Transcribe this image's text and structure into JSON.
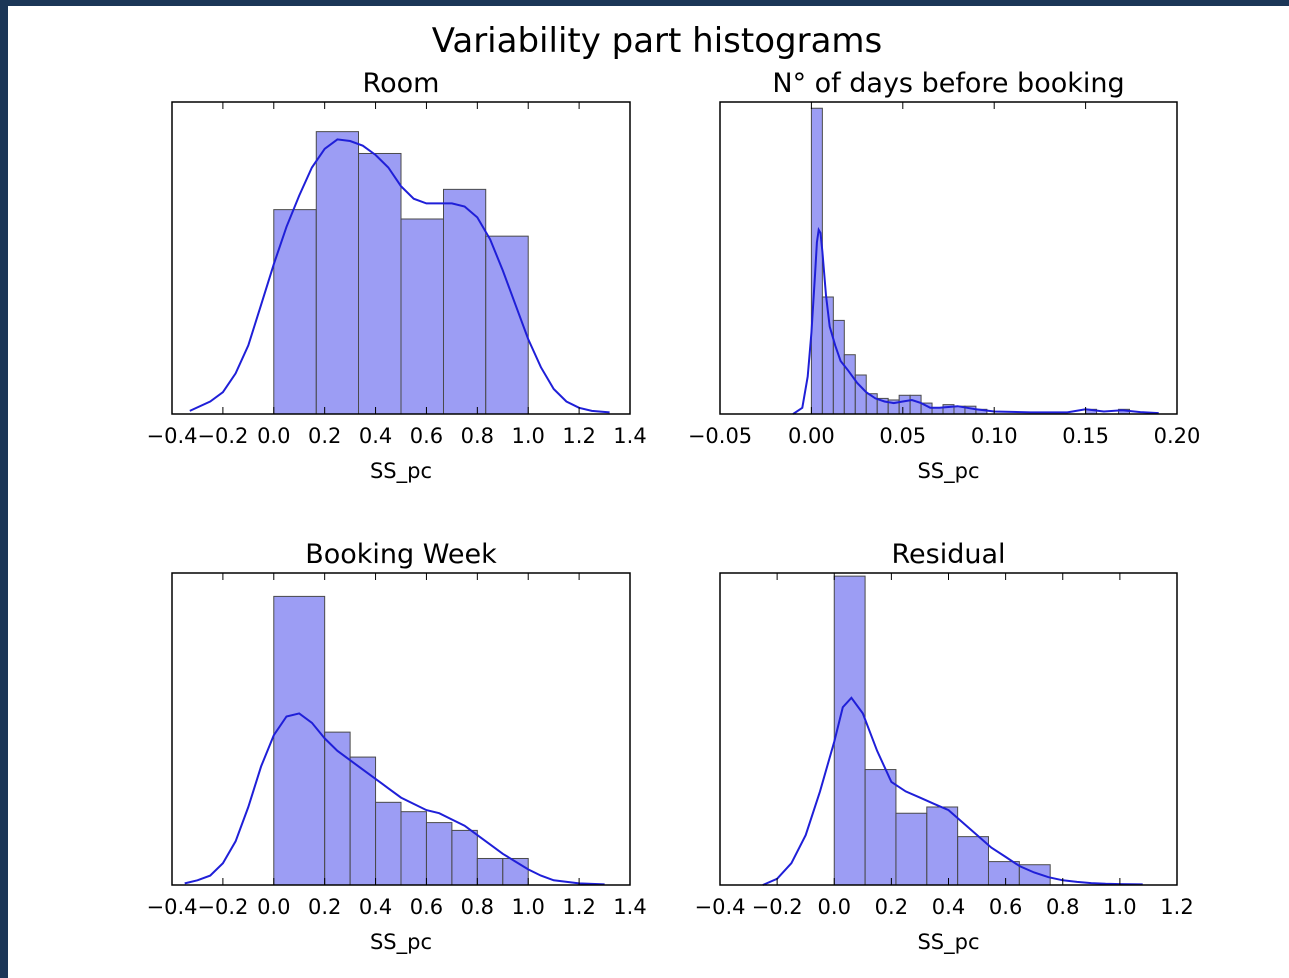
{
  "figure": {
    "suptitle": "Variability part histograms",
    "colors": {
      "bar_fill": "#7b7cf0",
      "bar_opacity": 0.75,
      "bar_edge": "#4a4a4a",
      "kde_line": "#1f1fd8",
      "axes_frame": "#000000",
      "background": "#ffffff"
    }
  },
  "chart_data": [
    {
      "type": "bar",
      "title": "Room",
      "xlabel": "SS_pc",
      "ylabel": "",
      "xlim": [
        -0.4,
        1.4
      ],
      "ylim": [
        0,
        1.0
      ],
      "yticks_visible": false,
      "xticks": [
        -0.4,
        -0.2,
        0.0,
        0.2,
        0.4,
        0.6,
        0.8,
        1.0,
        1.2,
        1.4
      ],
      "xtick_labels": [
        "−0.4",
        "−0.2",
        "0.0",
        "0.2",
        "0.4",
        "0.6",
        "0.8",
        "1.0",
        "1.2",
        "1.4"
      ],
      "bins": [
        {
          "x0": 0.0,
          "x1": 0.167,
          "y": 0.655
        },
        {
          "x0": 0.167,
          "x1": 0.333,
          "y": 0.905
        },
        {
          "x0": 0.333,
          "x1": 0.5,
          "y": 0.835
        },
        {
          "x0": 0.5,
          "x1": 0.667,
          "y": 0.625
        },
        {
          "x0": 0.667,
          "x1": 0.833,
          "y": 0.72
        },
        {
          "x0": 0.833,
          "x1": 1.0,
          "y": 0.57
        }
      ],
      "kde": {
        "x": [
          -0.33,
          -0.25,
          -0.2,
          -0.15,
          -0.1,
          -0.05,
          0.0,
          0.05,
          0.1,
          0.15,
          0.2,
          0.25,
          0.3,
          0.35,
          0.4,
          0.45,
          0.5,
          0.55,
          0.6,
          0.65,
          0.7,
          0.75,
          0.8,
          0.85,
          0.9,
          0.95,
          1.0,
          1.05,
          1.1,
          1.15,
          1.2,
          1.25,
          1.32
        ],
        "y": [
          0.01,
          0.04,
          0.07,
          0.13,
          0.22,
          0.35,
          0.48,
          0.6,
          0.7,
          0.79,
          0.85,
          0.88,
          0.875,
          0.86,
          0.83,
          0.79,
          0.73,
          0.69,
          0.675,
          0.675,
          0.675,
          0.665,
          0.63,
          0.56,
          0.46,
          0.35,
          0.24,
          0.15,
          0.08,
          0.04,
          0.02,
          0.01,
          0.005
        ]
      }
    },
    {
      "type": "bar",
      "title": "N° of days before booking",
      "xlabel": "SS_pc",
      "ylabel": "",
      "xlim": [
        -0.05,
        0.2
      ],
      "ylim": [
        0,
        1.0
      ],
      "yticks_visible": false,
      "xticks": [
        -0.05,
        0.0,
        0.05,
        0.1,
        0.15,
        0.2
      ],
      "xtick_labels": [
        "−0.05",
        "0.00",
        "0.05",
        "0.10",
        "0.15",
        "0.20"
      ],
      "bins": [
        {
          "x0": 0.0,
          "x1": 0.006,
          "y": 0.98
        },
        {
          "x0": 0.006,
          "x1": 0.012,
          "y": 0.375
        },
        {
          "x0": 0.012,
          "x1": 0.018,
          "y": 0.3
        },
        {
          "x0": 0.018,
          "x1": 0.024,
          "y": 0.19
        },
        {
          "x0": 0.024,
          "x1": 0.03,
          "y": 0.125
        },
        {
          "x0": 0.03,
          "x1": 0.036,
          "y": 0.065
        },
        {
          "x0": 0.036,
          "x1": 0.042,
          "y": 0.05
        },
        {
          "x0": 0.042,
          "x1": 0.048,
          "y": 0.045
        },
        {
          "x0": 0.048,
          "x1": 0.054,
          "y": 0.06
        },
        {
          "x0": 0.054,
          "x1": 0.06,
          "y": 0.06
        },
        {
          "x0": 0.06,
          "x1": 0.066,
          "y": 0.035
        },
        {
          "x0": 0.066,
          "x1": 0.072,
          "y": 0.02
        },
        {
          "x0": 0.072,
          "x1": 0.078,
          "y": 0.03
        },
        {
          "x0": 0.078,
          "x1": 0.084,
          "y": 0.025
        },
        {
          "x0": 0.084,
          "x1": 0.09,
          "y": 0.025
        },
        {
          "x0": 0.09,
          "x1": 0.096,
          "y": 0.015
        },
        {
          "x0": 0.15,
          "x1": 0.156,
          "y": 0.015
        },
        {
          "x0": 0.168,
          "x1": 0.174,
          "y": 0.015
        }
      ],
      "kde": {
        "x": [
          -0.01,
          -0.005,
          -0.002,
          0.0,
          0.002,
          0.003,
          0.004,
          0.005,
          0.006,
          0.008,
          0.01,
          0.013,
          0.016,
          0.02,
          0.025,
          0.03,
          0.035,
          0.04,
          0.045,
          0.05,
          0.055,
          0.06,
          0.065,
          0.07,
          0.08,
          0.09,
          0.1,
          0.12,
          0.14,
          0.15,
          0.16,
          0.17,
          0.18,
          0.19
        ],
        "y": [
          0.0,
          0.02,
          0.12,
          0.26,
          0.45,
          0.55,
          0.59,
          0.58,
          0.52,
          0.38,
          0.28,
          0.22,
          0.17,
          0.14,
          0.1,
          0.07,
          0.05,
          0.04,
          0.035,
          0.04,
          0.045,
          0.035,
          0.02,
          0.02,
          0.025,
          0.015,
          0.008,
          0.005,
          0.005,
          0.015,
          0.008,
          0.012,
          0.006,
          0.003
        ]
      }
    },
    {
      "type": "bar",
      "title": "Booking Week",
      "xlabel": "SS_pc",
      "ylabel": "",
      "xlim": [
        -0.4,
        1.4
      ],
      "ylim": [
        0,
        1.0
      ],
      "yticks_visible": false,
      "xticks": [
        -0.4,
        -0.2,
        0.0,
        0.2,
        0.4,
        0.6,
        0.8,
        1.0,
        1.2,
        1.4
      ],
      "xtick_labels": [
        "−0.4",
        "−0.2",
        "0.0",
        "0.2",
        "0.4",
        "0.6",
        "0.8",
        "1.0",
        "1.2",
        "1.4"
      ],
      "bins": [
        {
          "x0": 0.0,
          "x1": 0.2,
          "y": 0.925
        },
        {
          "x0": 0.2,
          "x1": 0.3,
          "y": 0.49
        },
        {
          "x0": 0.3,
          "x1": 0.4,
          "y": 0.41
        },
        {
          "x0": 0.4,
          "x1": 0.5,
          "y": 0.265
        },
        {
          "x0": 0.5,
          "x1": 0.6,
          "y": 0.235
        },
        {
          "x0": 0.6,
          "x1": 0.7,
          "y": 0.2
        },
        {
          "x0": 0.7,
          "x1": 0.8,
          "y": 0.175
        },
        {
          "x0": 0.8,
          "x1": 0.9,
          "y": 0.085
        },
        {
          "x0": 0.9,
          "x1": 1.0,
          "y": 0.085
        }
      ],
      "kde": {
        "x": [
          -0.35,
          -0.3,
          -0.25,
          -0.2,
          -0.15,
          -0.1,
          -0.05,
          0.0,
          0.05,
          0.1,
          0.15,
          0.2,
          0.25,
          0.3,
          0.35,
          0.4,
          0.45,
          0.5,
          0.55,
          0.6,
          0.65,
          0.7,
          0.75,
          0.8,
          0.85,
          0.9,
          0.95,
          1.0,
          1.05,
          1.1,
          1.2,
          1.3
        ],
        "y": [
          0.005,
          0.015,
          0.03,
          0.07,
          0.14,
          0.25,
          0.38,
          0.48,
          0.54,
          0.55,
          0.52,
          0.47,
          0.43,
          0.4,
          0.37,
          0.34,
          0.31,
          0.28,
          0.26,
          0.24,
          0.23,
          0.21,
          0.19,
          0.16,
          0.13,
          0.1,
          0.075,
          0.05,
          0.03,
          0.015,
          0.005,
          0.002
        ]
      }
    },
    {
      "type": "bar",
      "title": "Residual",
      "xlabel": "SS_pc",
      "ylabel": "",
      "xlim": [
        -0.4,
        1.2
      ],
      "ylim": [
        0,
        1.0
      ],
      "yticks_visible": false,
      "xticks": [
        -0.4,
        -0.2,
        0.0,
        0.2,
        0.4,
        0.6,
        0.8,
        1.0,
        1.2
      ],
      "xtick_labels": [
        "−0.4",
        "−0.2",
        "0.0",
        "0.2",
        "0.4",
        "0.6",
        "0.8",
        "1.0",
        "1.2"
      ],
      "bins": [
        {
          "x0": 0.0,
          "x1": 0.108,
          "y": 0.99
        },
        {
          "x0": 0.108,
          "x1": 0.216,
          "y": 0.37
        },
        {
          "x0": 0.216,
          "x1": 0.324,
          "y": 0.23
        },
        {
          "x0": 0.324,
          "x1": 0.432,
          "y": 0.25
        },
        {
          "x0": 0.432,
          "x1": 0.54,
          "y": 0.155
        },
        {
          "x0": 0.54,
          "x1": 0.648,
          "y": 0.075
        },
        {
          "x0": 0.648,
          "x1": 0.756,
          "y": 0.065
        }
      ],
      "kde": {
        "x": [
          -0.25,
          -0.2,
          -0.15,
          -0.1,
          -0.05,
          0.0,
          0.03,
          0.06,
          0.1,
          0.15,
          0.2,
          0.25,
          0.3,
          0.35,
          0.4,
          0.45,
          0.5,
          0.55,
          0.6,
          0.65,
          0.7,
          0.75,
          0.8,
          0.85,
          0.9,
          0.95,
          1.0,
          1.08
        ],
        "y": [
          0.0,
          0.02,
          0.07,
          0.16,
          0.3,
          0.46,
          0.57,
          0.6,
          0.55,
          0.43,
          0.33,
          0.3,
          0.28,
          0.26,
          0.24,
          0.2,
          0.16,
          0.12,
          0.09,
          0.06,
          0.04,
          0.025,
          0.015,
          0.01,
          0.006,
          0.004,
          0.003,
          0.002
        ]
      }
    }
  ]
}
